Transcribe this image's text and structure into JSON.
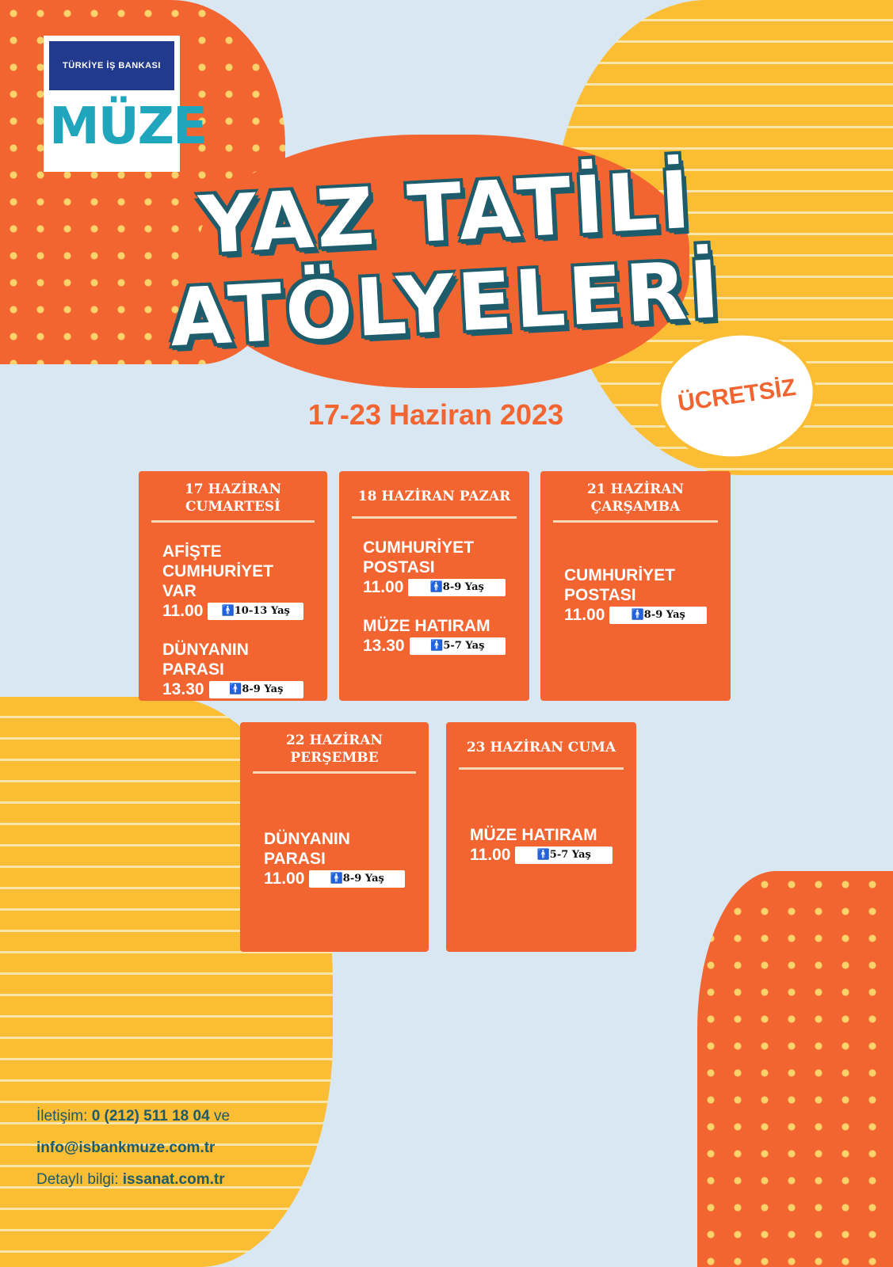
{
  "logo": {
    "bank": "TÜRKİYE İŞ BANKASI",
    "museum": "MÜZE"
  },
  "title": {
    "line1": "YAZ TATİLİ",
    "line2": "ATÖLYELERİ"
  },
  "badge": "ÜCRETSİZ",
  "date": "17-23 Haziran 2023",
  "days": [
    {
      "day": "17 HAZİRAN CUMARTESİ",
      "events": [
        {
          "name": "AFİŞTE CUMHURİYET VAR",
          "time": "11.00",
          "age": "10-13 Yaş"
        },
        {
          "name": "DÜNYANIN PARASI",
          "time": "13.30",
          "age": "8-9 Yaş"
        }
      ]
    },
    {
      "day": "18 HAZİRAN PAZAR",
      "events": [
        {
          "name": "CUMHURİYET POSTASI",
          "time": "11.00",
          "age": "8-9 Yaş"
        },
        {
          "name": "MÜZE HATIRAM",
          "time": "13.30",
          "age": "5-7 Yaş"
        }
      ]
    },
    {
      "day": "21 HAZİRAN ÇARŞAMBA",
      "events": [
        {
          "name": "CUMHURİYET POSTASI",
          "time": "11.00",
          "age": "8-9 Yaş"
        }
      ]
    },
    {
      "day": "22 HAZİRAN PERŞEMBE",
      "events": [
        {
          "name": "DÜNYANIN PARASI",
          "time": "11.00",
          "age": "8-9 Yaş"
        }
      ]
    },
    {
      "day": "23 HAZİRAN CUMA",
      "events": [
        {
          "name": "MÜZE HATIRAM",
          "time": "11.00",
          "age": "5-7 Yaş"
        }
      ]
    }
  ],
  "footer": {
    "contact_label": "İletişim:",
    "phone": "0 (212) 511 18 04",
    "and": "ve",
    "email": "info@isbankmuze.com.tr",
    "info_label": "Detaylı bilgi:",
    "website": "issanat.com.tr"
  },
  "colors": {
    "orange": "#f26531",
    "yellow": "#fbbd33",
    "teal": "#1e5c6b",
    "background": "#d8e7f1"
  }
}
